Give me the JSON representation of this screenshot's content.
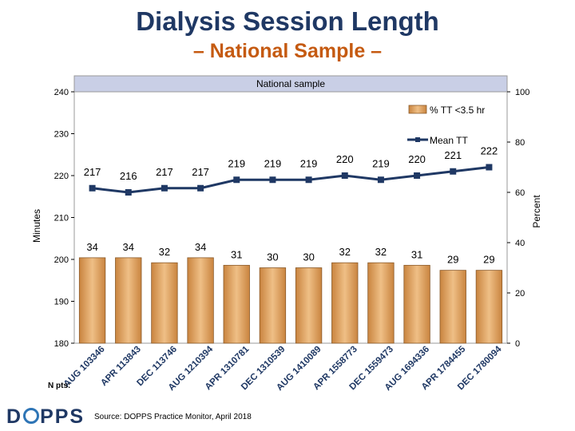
{
  "title": "Dialysis Session Length",
  "subtitle": "– National Sample –",
  "logo_text": "DOPPS",
  "source": "Source: DOPPS Practice Monitor, April 2018",
  "n_pts_label": "N pts:",
  "colors": {
    "bar": "#d89a58",
    "line": "#1f3864",
    "title": "#1f3864",
    "subtitle": "#c55a11",
    "panel_title_bg": "#c9cfe6"
  },
  "chart_data": {
    "type": "bar",
    "title": "National sample",
    "categories": [
      "AUG 103346",
      "APR 113843",
      "DEC 113746",
      "AUG 1210394",
      "APR 1310781",
      "DEC 1310539",
      "AUG 1410089",
      "APR 1558773",
      "DEC 1559473",
      "AUG 1694336",
      "APR 1784455",
      "DEC 1780094"
    ],
    "series": [
      {
        "name": "% TT <3.5 hr",
        "type": "bar",
        "axis": "right",
        "values": [
          34,
          34,
          32,
          34,
          31,
          30,
          30,
          32,
          32,
          31,
          29,
          29
        ]
      },
      {
        "name": "Mean TT",
        "type": "line",
        "axis": "left",
        "values": [
          217,
          216,
          217,
          217,
          219,
          219,
          219,
          220,
          219,
          220,
          221,
          222
        ]
      }
    ],
    "ylabel": "Minutes",
    "y2label": "Percent",
    "ylim": [
      180,
      240
    ],
    "y2lim": [
      0,
      100
    ],
    "yticks": [
      "180",
      "190",
      "200",
      "210",
      "220",
      "230",
      "240"
    ],
    "y2ticks": [
      "0",
      "20",
      "40",
      "60",
      "80",
      "100"
    ],
    "legend_position": "top-right",
    "grid": false
  }
}
